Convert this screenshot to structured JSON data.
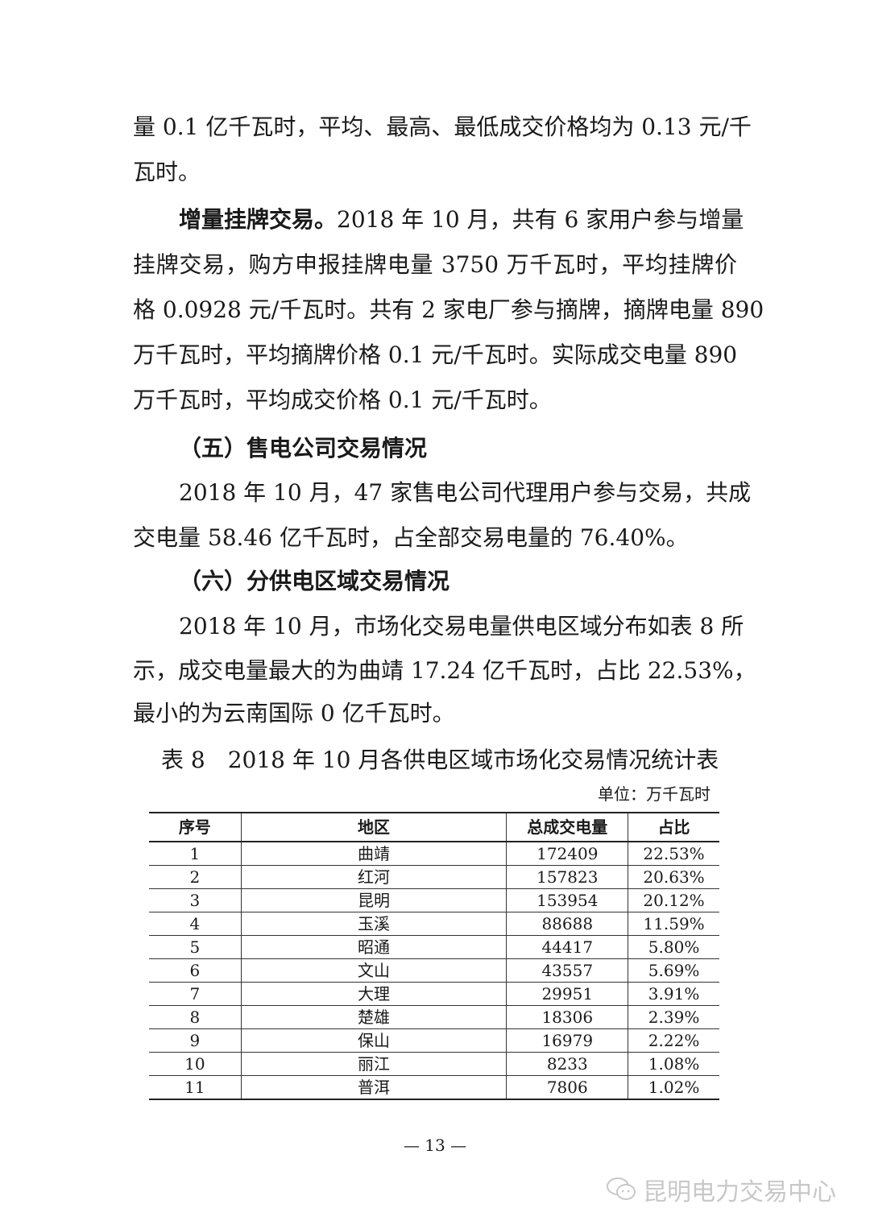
{
  "lines": [
    "量 0.1 亿千瓦时，平均、最高、最低成交价格均为 0.13 元/千",
    "瓦时。"
  ],
  "p_increment": {
    "bold_lead": "增量挂牌交易。",
    "first_rest": "2018 年 10 月，共有 6 家用户参与增量",
    "lines": [
      "挂牌交易，购方申报挂牌电量 3750 万千瓦时，平均挂牌价",
      "格 0.0928 元/千瓦时。共有 2 家电厂参与摘牌，摘牌电量 890",
      "万千瓦时，平均摘牌价格 0.1 元/千瓦时。实际成交电量 890",
      "万千瓦时，平均成交价格 0.1 元/千瓦时。"
    ]
  },
  "heading5": "（五）售电公司交易情况",
  "p5": [
    "2018 年 10 月，47 家售电公司代理用户参与交易，共成",
    "交电量 58.46 亿千瓦时，占全部交易电量的 76.40%。"
  ],
  "heading6": "（六）分供电区域交易情况",
  "p6": [
    "2018 年 10 月，市场化交易电量供电区域分布如表 8 所",
    "示，成交电量最大的为曲靖 17.24 亿千瓦时，占比 22.53%，",
    "最小的为云南国际 0 亿千瓦时。"
  ],
  "table": {
    "title": "表 8　2018 年 10 月各供电区域市场化交易情况统计表",
    "unit": "单位：万千瓦时",
    "headers": [
      "序号",
      "地区",
      "总成交电量",
      "占比"
    ],
    "rows": [
      [
        "1",
        "曲靖",
        "172409",
        "22.53%"
      ],
      [
        "2",
        "红河",
        "157823",
        "20.63%"
      ],
      [
        "3",
        "昆明",
        "153954",
        "20.12%"
      ],
      [
        "4",
        "玉溪",
        "88688",
        "11.59%"
      ],
      [
        "5",
        "昭通",
        "44417",
        "5.80%"
      ],
      [
        "6",
        "文山",
        "43557",
        "5.69%"
      ],
      [
        "7",
        "大理",
        "29951",
        "3.91%"
      ],
      [
        "8",
        "楚雄",
        "18306",
        "2.39%"
      ],
      [
        "9",
        "保山",
        "16979",
        "2.22%"
      ],
      [
        "10",
        "丽江",
        "8233",
        "1.08%"
      ],
      [
        "11",
        "普洱",
        "7806",
        "1.02%"
      ]
    ]
  },
  "page_number": "— 13 —",
  "watermark": {
    "icon": "wechat-icon",
    "text": "昆明电力交易中心"
  }
}
